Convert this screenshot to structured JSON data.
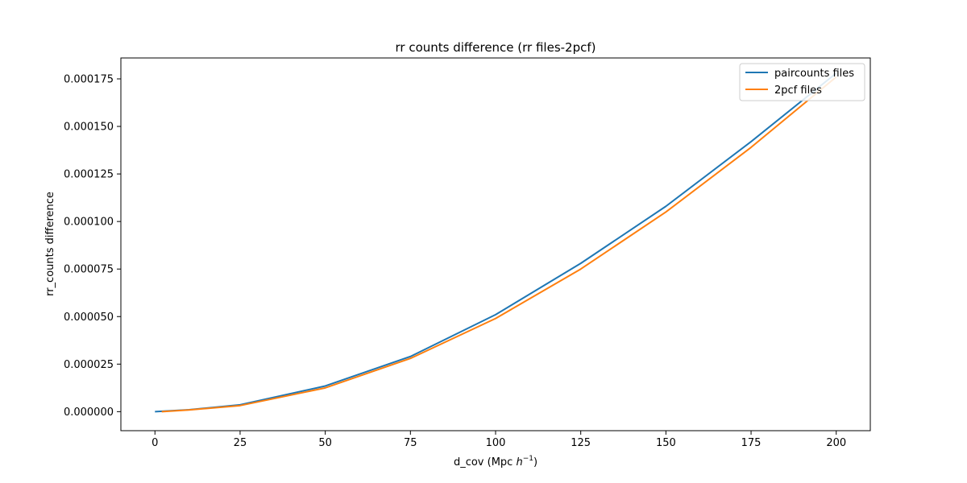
{
  "chart_data": {
    "type": "line",
    "title": "rr counts difference (rr files-2pcf)",
    "xlabel_main": "d_cov (Mpc ",
    "xlabel_italic": "h",
    "xlabel_sup": "−1",
    "xlabel_close": ")",
    "ylabel": "rr_counts difference",
    "xlim": [
      -10,
      210
    ],
    "ylim": [
      -1e-05,
      0.000186
    ],
    "xticks": [
      0,
      25,
      50,
      75,
      100,
      125,
      150,
      175,
      200
    ],
    "xtick_labels": [
      "0",
      "25",
      "50",
      "75",
      "100",
      "125",
      "150",
      "175",
      "200"
    ],
    "yticks": [
      0,
      2.5e-05,
      5e-05,
      7.5e-05,
      0.0001,
      0.000125,
      0.00015,
      0.000175
    ],
    "ytick_labels": [
      "0.000000",
      "0.000025",
      "0.000050",
      "0.000075",
      "0.000100",
      "0.000125",
      "0.000150",
      "0.000175"
    ],
    "legend_position": "top-right",
    "series": [
      {
        "name": "paircounts files",
        "color": "#1f77b4",
        "x": [
          0,
          10,
          25,
          50,
          75,
          100,
          125,
          150,
          175,
          200
        ],
        "y": [
          0,
          1e-06,
          3.6e-06,
          1.35e-05,
          2.9e-05,
          5.1e-05,
          7.8e-05,
          0.000108,
          0.000142,
          0.000178
        ]
      },
      {
        "name": "2pcf files",
        "color": "#ff7f0e",
        "x": [
          2,
          10,
          25,
          50,
          75,
          100,
          125,
          150,
          175,
          200
        ],
        "y": [
          0,
          9e-07,
          3.2e-06,
          1.25e-05,
          2.8e-05,
          4.9e-05,
          7.5e-05,
          0.000105,
          0.000139,
          0.000176
        ]
      }
    ]
  }
}
